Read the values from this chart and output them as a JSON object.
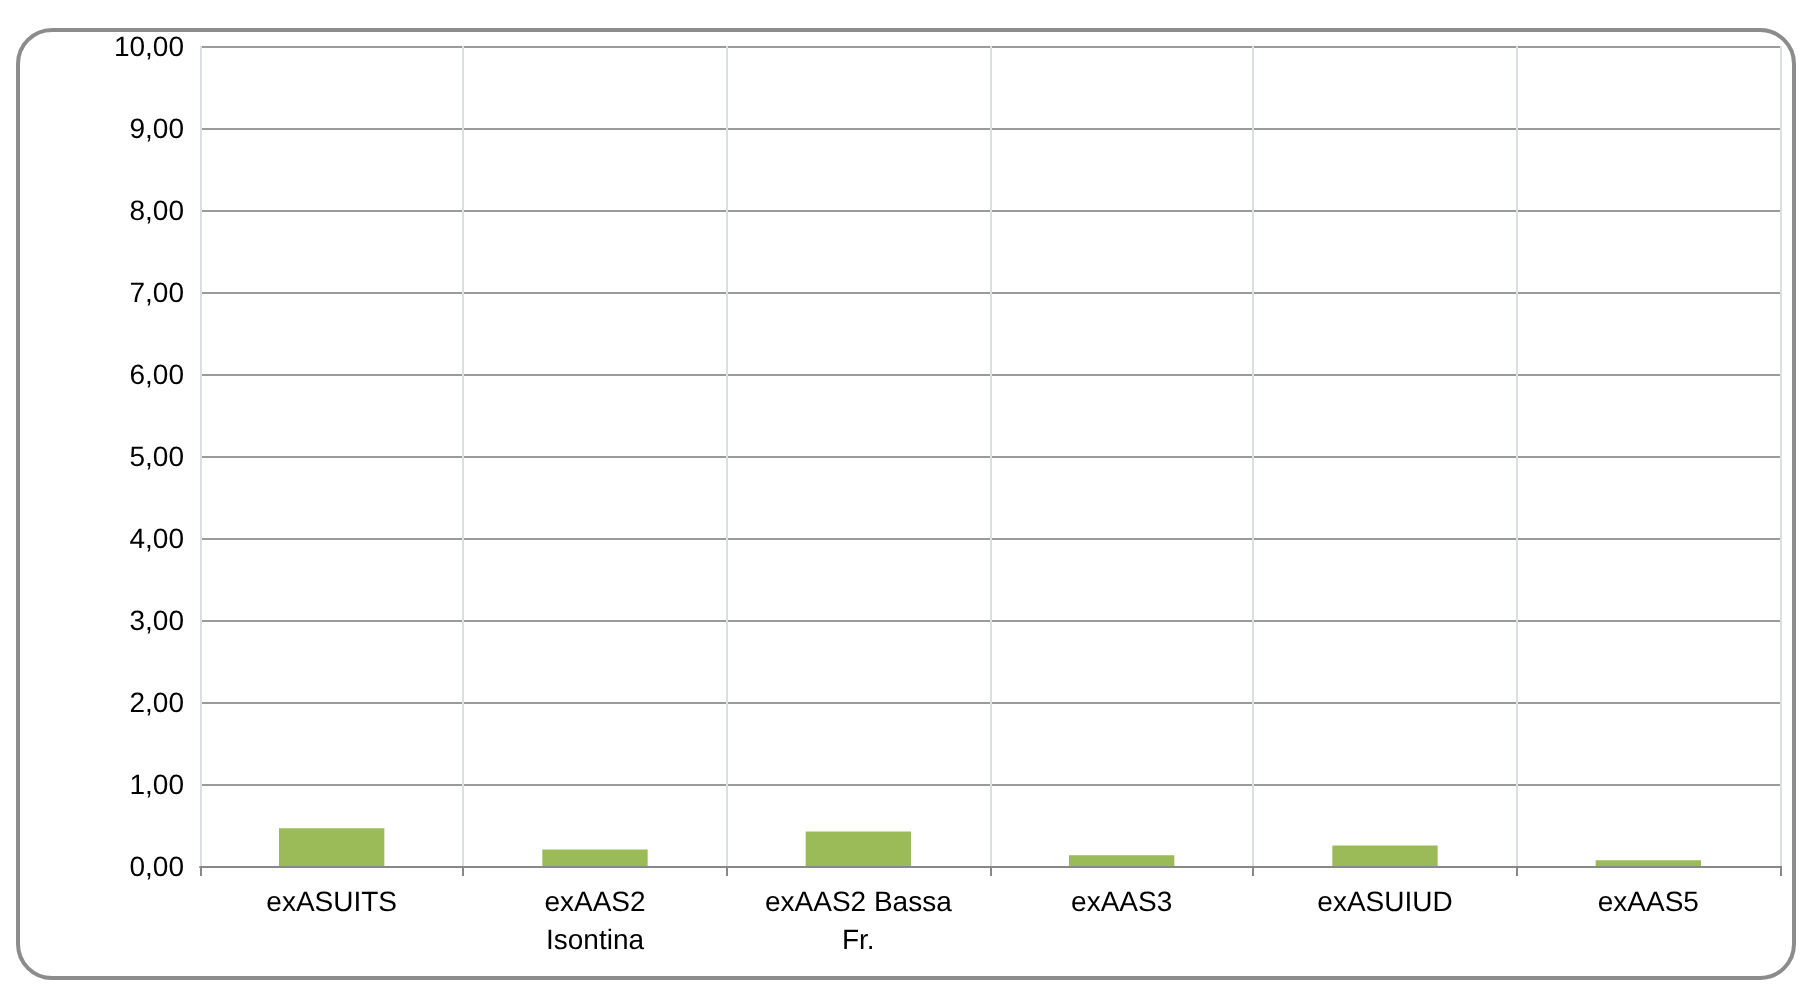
{
  "chart_data": {
    "type": "bar",
    "categories": [
      "exASUITS",
      "exAAS2\nIsontina",
      "exAAS2 Bassa\nFr.",
      "exAAS3",
      "exASUIUD",
      "exAAS5"
    ],
    "values": [
      0.46,
      0.2,
      0.42,
      0.13,
      0.25,
      0.07
    ],
    "color": "#9bbb59",
    "ylim": [
      0,
      10
    ],
    "yticks": [
      {
        "value": 0,
        "label": "0,00"
      },
      {
        "value": 1,
        "label": "1,00"
      },
      {
        "value": 2,
        "label": "2,00"
      },
      {
        "value": 3,
        "label": "3,00"
      },
      {
        "value": 4,
        "label": "4,00"
      },
      {
        "value": 5,
        "label": "5,00"
      },
      {
        "value": 6,
        "label": "6,00"
      },
      {
        "value": 7,
        "label": "7,00"
      },
      {
        "value": 8,
        "label": "8,00"
      },
      {
        "value": 9,
        "label": "9,00"
      },
      {
        "value": 10,
        "label": "10,00"
      }
    ],
    "grid": true
  }
}
